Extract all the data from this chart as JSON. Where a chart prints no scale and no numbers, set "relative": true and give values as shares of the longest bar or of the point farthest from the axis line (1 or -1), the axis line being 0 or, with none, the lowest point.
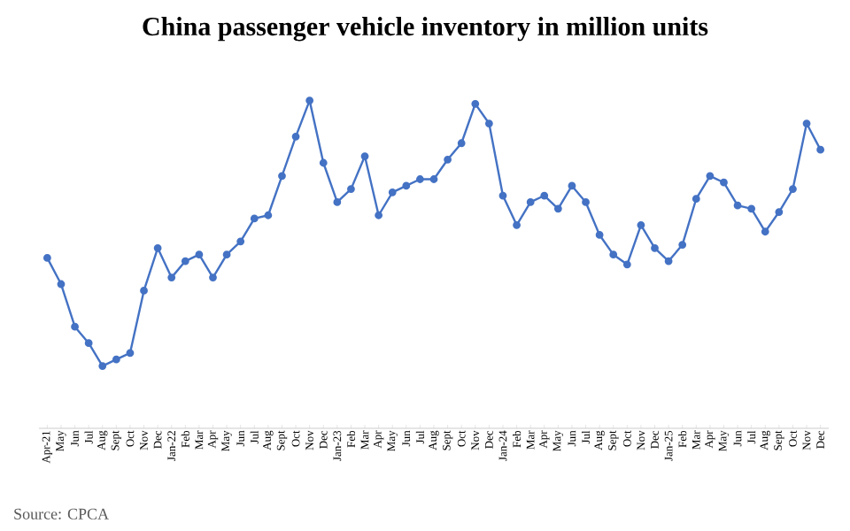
{
  "chart_data": {
    "type": "line",
    "title": "China passenger vehicle inventory in million units",
    "categories": [
      "Apr-21",
      "May",
      "Jun",
      "Jul",
      "Aug",
      "Sept",
      "Oct",
      "Nov",
      "Dec",
      "Jan-22",
      "Feb",
      "Mar",
      "Apr",
      "May",
      "Jun",
      "Jul",
      "Aug",
      "Sept",
      "Oct",
      "Nov",
      "Dec",
      "Jan-23",
      "Feb",
      "Mar",
      "Apr",
      "May",
      "Jun",
      "Jul",
      "Aug",
      "Sept",
      "Oct",
      "Nov",
      "Dec",
      "Jan-24",
      "Feb",
      "Mar",
      "Apr",
      "May",
      "Jun",
      "Jul",
      "Aug",
      "Sept",
      "Oct",
      "Nov",
      "Dec",
      "Jan-25",
      "Feb",
      "Mar",
      "Apr",
      "May",
      "Jun",
      "Jul",
      "Aug",
      "Sept",
      "Oct",
      "Nov",
      "Dec"
    ],
    "series": [
      {
        "color": "#4472c4",
        "values": [
          0.52,
          0.44,
          0.31,
          0.26,
          0.19,
          0.21,
          0.23,
          0.42,
          0.55,
          0.46,
          0.51,
          0.53,
          0.46,
          0.53,
          0.57,
          0.64,
          0.65,
          0.77,
          0.89,
          1,
          0.81,
          0.69,
          0.73,
          0.83,
          0.65,
          0.72,
          0.74,
          0.76,
          0.76,
          0.82,
          0.87,
          0.99,
          0.93,
          0.71,
          0.62,
          0.69,
          0.71,
          0.67,
          0.74,
          0.69,
          0.59,
          0.53,
          0.5,
          0.62,
          0.55,
          0.51,
          0.56,
          0.7,
          0.77,
          0.75,
          0.68,
          0.67,
          0.6,
          0.66,
          0.73,
          0.93,
          0.85
        ]
      }
    ],
    "relative": true,
    "marker": "circle",
    "line_style": "solid",
    "annotations": [
      "Source: CPCA"
    ]
  }
}
